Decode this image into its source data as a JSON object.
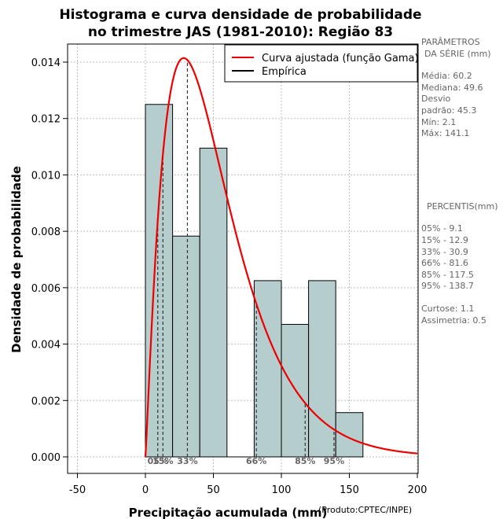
{
  "chart_data": {
    "type": "bar",
    "title": [
      "Histograma e curva densidade de probabilidade",
      "no trimestre JAS (1981-2010): Região 83"
    ],
    "xlabel": "Precipitação acumulada (mm)",
    "ylabel": "Densidade de probabilidade",
    "credit": "(Produto:CPTEC/INPE)",
    "xlim": [
      -50,
      200
    ],
    "ylim": [
      0,
      0.0145
    ],
    "xticks": [
      -50,
      0,
      50,
      100,
      150,
      200
    ],
    "xtick_labels": [
      "-50",
      "0",
      "50",
      "100",
      "150",
      "200"
    ],
    "yticks": [
      0,
      0.002,
      0.004,
      0.006,
      0.008,
      0.01,
      0.012,
      0.014
    ],
    "ytick_labels": [
      "0.000",
      "0.002",
      "0.004",
      "0.006",
      "0.008",
      "0.010",
      "0.012",
      "0.014"
    ],
    "grid": true,
    "bins": [
      {
        "x0": 0,
        "x1": 20,
        "density": 0.0125
      },
      {
        "x0": 20,
        "x1": 40,
        "density": 0.00783
      },
      {
        "x0": 40,
        "x1": 60,
        "density": 0.01095
      },
      {
        "x0": 60,
        "x1": 80,
        "density": 0
      },
      {
        "x0": 80,
        "x1": 100,
        "density": 0.00625
      },
      {
        "x0": 100,
        "x1": 120,
        "density": 0.0047
      },
      {
        "x0": 120,
        "x1": 140,
        "density": 0.00625
      },
      {
        "x0": 140,
        "x1": 160,
        "density": 0.00157
      }
    ],
    "bar_color": "#b5cdcd",
    "fitted_curve": {
      "name": "Curva ajustada (função Gama)",
      "distribution": "gamma",
      "shape": 2.15,
      "scale": 24.5,
      "color": "#ee0000"
    },
    "empirical": {
      "name": "Empírica",
      "color": "#000000"
    },
    "legend_position": "top-right",
    "percentile_lines": [
      {
        "label": "05%",
        "value": 9.1
      },
      {
        "label": "15%",
        "value": 12.9
      },
      {
        "label": "33%",
        "value": 30.9
      },
      {
        "label": "66%",
        "value": 81.6
      },
      {
        "label": "85%",
        "value": 117.5
      },
      {
        "label": "95%",
        "value": 138.7
      }
    ]
  },
  "side_panel": {
    "params_title_1": "PARÂMETROS",
    "params_title_2": "DA SÉRIE (mm)",
    "media": "Média:  60.2",
    "mediana": "Mediana:  49.6",
    "desvio_1": "Desvio",
    "desvio_2": "padrão:  45.3",
    "min": "Mín:  2.1",
    "max": "Máx:  141.1",
    "percentis_title": "PERCENTIS(mm)",
    "percentis": [
      "05% -   9.1",
      "15% -   12.9",
      "33% -   30.9",
      "66% -   81.6",
      "85% -   117.5",
      "95% -   138.7"
    ],
    "curtose": "Curtose:  1.1",
    "assimetria": "Assimetria:  0.5"
  }
}
